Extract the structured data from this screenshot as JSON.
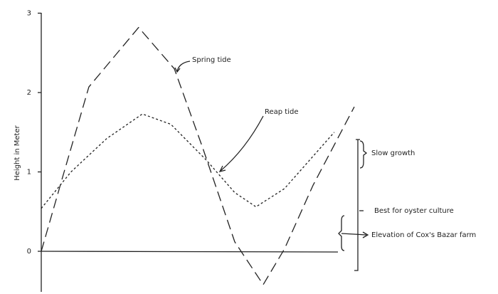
{
  "chart_data": {
    "type": "line",
    "ylabel": "Height in Meter",
    "xlim": [
      0,
      10
    ],
    "ylim": [
      -0.5,
      3
    ],
    "yticks": [
      0,
      1,
      2,
      3
    ],
    "series": [
      {
        "name": "Spring tide",
        "color": "#222",
        "x": [
          0,
          0.73,
          1.52,
          3.11,
          4.25,
          5.16,
          6.18,
          7.09,
          7.77,
          8.68,
          10
        ],
        "values": [
          0,
          1.0,
          2.07,
          2.82,
          2.3,
          1.3,
          0.12,
          -0.42,
          0.03,
          0.83,
          1.82
        ]
      },
      {
        "name": "Reap tide",
        "color": "#222",
        "x": [
          0,
          0.95,
          2.09,
          3.23,
          4.14,
          5.27,
          6.18,
          6.86,
          7.77,
          9.36
        ],
        "values": [
          0.54,
          1.0,
          1.42,
          1.73,
          1.6,
          1.15,
          0.74,
          0.56,
          0.79,
          1.5
        ]
      }
    ],
    "annotations": [
      "Slow growth",
      "Best for oyster culture",
      "Elevation of  Cox's Bazar farm"
    ]
  }
}
